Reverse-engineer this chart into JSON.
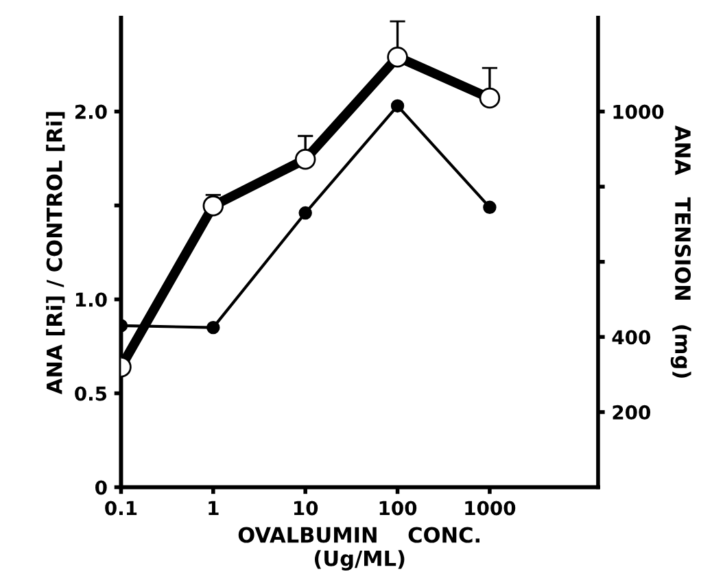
{
  "chart_data": {
    "type": "line",
    "xlabel": "OVALBUMIN    CONC.\n(Ug/ML)",
    "ylabel": "ANA [Ri] / CONTROL [Ri]",
    "y2label": "ANA   TENSION   (mg)",
    "x": [
      0.1,
      1,
      10,
      100,
      1000
    ],
    "log": "x",
    "xlim": [
      0.1,
      15000
    ],
    "xticks": [
      0.1,
      1,
      10,
      100,
      1000
    ],
    "ylim": [
      0,
      2.5
    ],
    "yticks": [
      0,
      0.5,
      {
        "value": 1.0,
        "label": "1.0"
      },
      {
        "value": 1.5,
        "label": null
      },
      {
        "value": 2.0,
        "label": "2.0"
      }
    ],
    "y2lim": [
      0,
      1250
    ],
    "y2ticks": [
      200,
      400,
      {
        "value": 600,
        "label": null
      },
      {
        "value": 800,
        "label": null
      },
      1000
    ],
    "series": [
      {
        "color": "#000000",
        "axis": "y2",
        "values": [
          320,
          749,
          873,
          1145,
          1036
        ],
        "errors": [
          [
            320,
            349
          ],
          [
            749,
            778
          ],
          [
            873,
            935
          ],
          [
            1145,
            1240
          ],
          [
            1036,
            1116
          ]
        ]
      },
      {
        "color": "#000000",
        "values": [
          0.86,
          0.85,
          1.46,
          2.03,
          1.49
        ]
      }
    ],
    "marker": "circle",
    "grid": false,
    "legend": false
  }
}
